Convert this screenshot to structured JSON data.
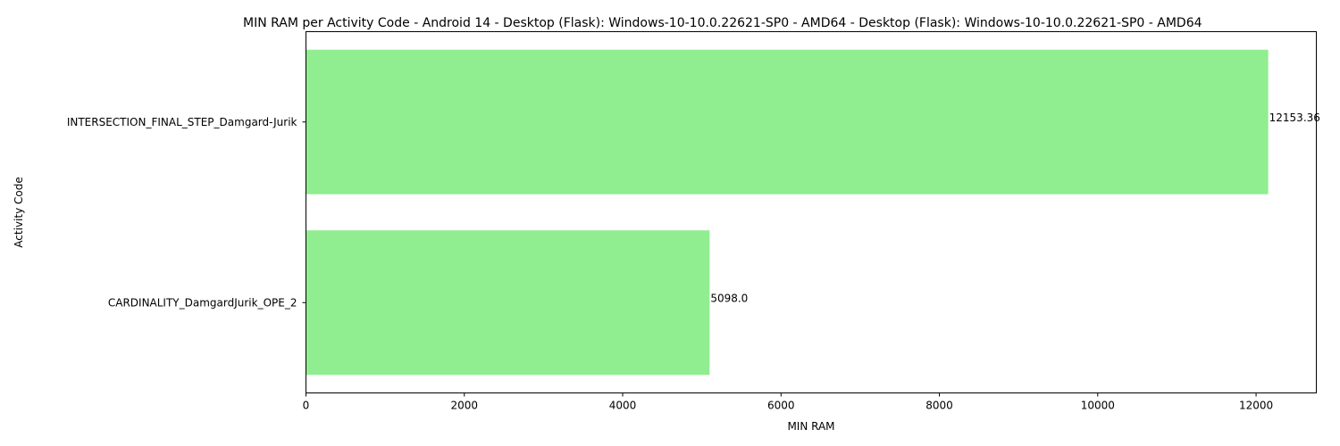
{
  "chart_data": {
    "type": "bar",
    "orientation": "horizontal",
    "title": "MIN RAM per Activity Code - Android 14 - Desktop (Flask): Windows-10-10.0.22621-SP0 - AMD64 - Desktop (Flask): Windows-10-10.0.22621-SP0 - AMD64",
    "xlabel": "MIN RAM",
    "ylabel": "Activity Code",
    "categories": [
      "INTERSECTION_FINAL_STEP_Damgard-Jurik",
      "CARDINALITY_DamgardJurik_OPE_2"
    ],
    "values": [
      12153.36,
      5098.0
    ],
    "data_labels": [
      "12153.36",
      "5098.0"
    ],
    "xlim": [
      0,
      12761
    ],
    "xticks": [
      0,
      2000,
      4000,
      6000,
      8000,
      10000,
      12000
    ],
    "bar_color": "#90ee90",
    "grid": false,
    "legend": "none"
  }
}
